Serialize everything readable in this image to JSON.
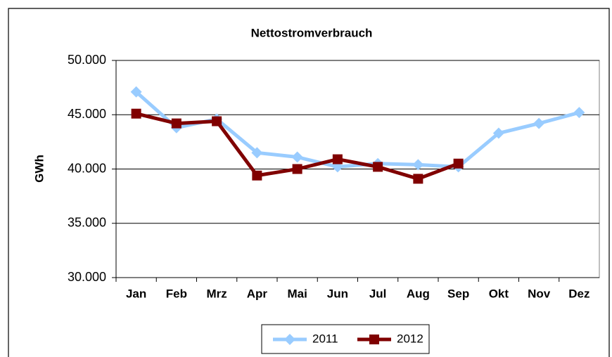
{
  "chart_data": {
    "type": "line",
    "title": "Nettostromverbrauch",
    "y_label": "GWh",
    "categories": [
      "Jan",
      "Feb",
      "Mrz",
      "Apr",
      "Mai",
      "Jun",
      "Jul",
      "Aug",
      "Sep",
      "Okt",
      "Nov",
      "Dez"
    ],
    "series": [
      {
        "name": "2011",
        "color": "#99ccff",
        "marker": "diamond",
        "values": [
          47100,
          43800,
          44600,
          41500,
          41100,
          40200,
          40500,
          40400,
          40200,
          43300,
          44200,
          45200
        ]
      },
      {
        "name": "2012",
        "color": "#800000",
        "marker": "square",
        "values": [
          45100,
          44200,
          44400,
          39400,
          40000,
          40900,
          40200,
          39100,
          40500,
          null,
          null,
          null
        ]
      }
    ],
    "ylim": [
      30000,
      50000
    ],
    "yticks": [
      {
        "value": 30000,
        "label": "30.000"
      },
      {
        "value": 35000,
        "label": "35.000"
      },
      {
        "value": 40000,
        "label": "40.000"
      },
      {
        "value": 45000,
        "label": "45.000"
      },
      {
        "value": 50000,
        "label": "50.000"
      }
    ],
    "grid": true,
    "legend": "bottom"
  }
}
